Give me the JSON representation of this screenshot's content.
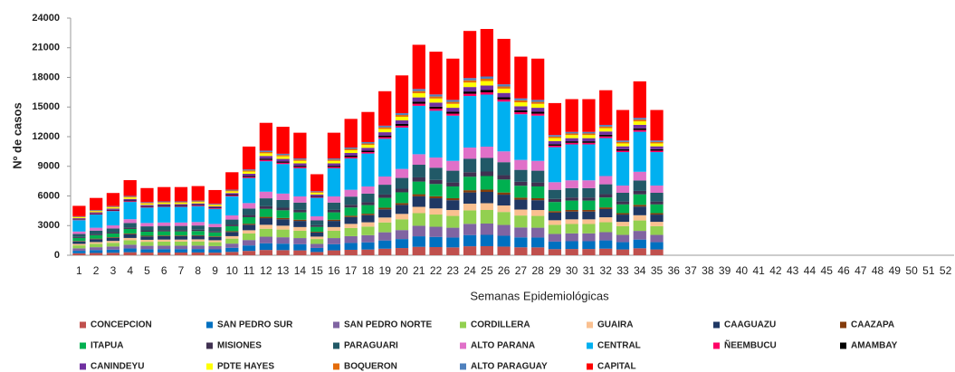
{
  "chart_data": {
    "type": "stacked_bar",
    "y_label": "Nº de casos",
    "x_label": "Semanas Epidemiológicas",
    "categories": [
      "1",
      "2",
      "3",
      "4",
      "5",
      "6",
      "7",
      "8",
      "9",
      "10",
      "11",
      "12",
      "13",
      "14",
      "15",
      "16",
      "17",
      "18",
      "19",
      "20",
      "21",
      "22",
      "23",
      "24",
      "25",
      "26",
      "27",
      "28",
      "29",
      "30",
      "31",
      "32",
      "33",
      "34",
      "35",
      "36",
      "37",
      "38",
      "39",
      "40",
      "41",
      "42",
      "43",
      "44",
      "45",
      "46",
      "47",
      "48",
      "49",
      "50",
      "51",
      "52"
    ],
    "ylim": [
      0,
      24000
    ],
    "yticks": [
      0,
      3000,
      6000,
      9000,
      12000,
      15000,
      18000,
      21000,
      24000
    ],
    "series": [
      {
        "name": "CONCEPCION",
        "color": "#c0504d",
        "values": [
          200,
          232,
          252,
          304,
          272,
          276,
          276,
          280,
          264,
          336,
          440,
          536,
          520,
          496,
          328,
          496,
          552,
          580,
          664,
          728,
          852,
          824,
          796,
          908,
          916,
          876,
          804,
          796,
          616,
          632,
          632,
          668,
          588,
          704,
          588,
          null,
          null,
          null,
          null,
          null,
          null,
          null,
          null,
          null,
          null,
          null,
          null,
          null,
          null,
          null,
          null,
          null
        ]
      },
      {
        "name": "SAN PEDRO SUR",
        "color": "#0070c0",
        "values": [
          250,
          290,
          315,
          380,
          340,
          345,
          345,
          350,
          330,
          420,
          550,
          670,
          650,
          620,
          410,
          620,
          690,
          725,
          830,
          910,
          1065,
          1030,
          995,
          1135,
          1145,
          1095,
          1005,
          995,
          770,
          790,
          790,
          835,
          735,
          880,
          735,
          null,
          null,
          null,
          null,
          null,
          null,
          null,
          null,
          null,
          null,
          null,
          null,
          null,
          null,
          null,
          null,
          null
        ]
      },
      {
        "name": "SAN PEDRO NORTE",
        "color": "#8064a2",
        "values": [
          250,
          290,
          315,
          380,
          340,
          345,
          345,
          350,
          330,
          420,
          550,
          670,
          650,
          620,
          410,
          620,
          690,
          725,
          830,
          910,
          1065,
          1030,
          995,
          1135,
          1145,
          1095,
          1005,
          995,
          770,
          790,
          790,
          835,
          735,
          880,
          735,
          null,
          null,
          null,
          null,
          null,
          null,
          null,
          null,
          null,
          null,
          null,
          null,
          null,
          null,
          null,
          null,
          null
        ]
      },
      {
        "name": "CORDILLERA",
        "color": "#92d050",
        "values": [
          300,
          348,
          378,
          456,
          408,
          414,
          414,
          420,
          396,
          504,
          660,
          804,
          780,
          744,
          492,
          744,
          828,
          870,
          996,
          1092,
          1278,
          1236,
          1194,
          1362,
          1374,
          1314,
          1206,
          1194,
          924,
          948,
          948,
          1002,
          882,
          1056,
          882,
          null,
          null,
          null,
          null,
          null,
          null,
          null,
          null,
          null,
          null,
          null,
          null,
          null,
          null,
          null,
          null,
          null
        ]
      },
      {
        "name": "GUAIRA",
        "color": "#fac090",
        "values": [
          150,
          174,
          189,
          228,
          204,
          207,
          207,
          210,
          198,
          252,
          330,
          402,
          390,
          372,
          246,
          372,
          414,
          435,
          498,
          546,
          639,
          618,
          597,
          681,
          687,
          657,
          603,
          597,
          462,
          474,
          474,
          501,
          441,
          528,
          441,
          null,
          null,
          null,
          null,
          null,
          null,
          null,
          null,
          null,
          null,
          null,
          null,
          null,
          null,
          null,
          null,
          null
        ]
      },
      {
        "name": "CAAGUAZU",
        "color": "#1f3864",
        "values": [
          250,
          290,
          315,
          380,
          340,
          345,
          345,
          350,
          330,
          420,
          550,
          670,
          650,
          620,
          410,
          620,
          690,
          725,
          830,
          910,
          1065,
          1030,
          995,
          1135,
          1145,
          1095,
          1005,
          995,
          770,
          790,
          790,
          835,
          735,
          880,
          735,
          null,
          null,
          null,
          null,
          null,
          null,
          null,
          null,
          null,
          null,
          null,
          null,
          null,
          null,
          null,
          null,
          null
        ]
      },
      {
        "name": "CAAZAPA",
        "color": "#843c0c",
        "values": [
          50,
          58,
          63,
          76,
          68,
          69,
          69,
          70,
          66,
          84,
          110,
          134,
          130,
          124,
          82,
          124,
          138,
          145,
          166,
          182,
          213,
          206,
          199,
          227,
          229,
          219,
          201,
          199,
          154,
          158,
          158,
          167,
          147,
          176,
          147,
          null,
          null,
          null,
          null,
          null,
          null,
          null,
          null,
          null,
          null,
          null,
          null,
          null,
          null,
          null,
          null,
          null
        ]
      },
      {
        "name": "ITAPUA",
        "color": "#00b050",
        "values": [
          300,
          348,
          378,
          456,
          408,
          414,
          414,
          420,
          396,
          504,
          660,
          804,
          780,
          744,
          492,
          744,
          828,
          870,
          996,
          1092,
          1278,
          1236,
          1194,
          1362,
          1374,
          1314,
          1206,
          1194,
          924,
          948,
          948,
          1002,
          882,
          1056,
          882,
          null,
          null,
          null,
          null,
          null,
          null,
          null,
          null,
          null,
          null,
          null,
          null,
          null,
          null,
          null,
          null,
          null
        ]
      },
      {
        "name": "MISIONES",
        "color": "#403151",
        "values": [
          100,
          116,
          126,
          152,
          136,
          138,
          138,
          140,
          132,
          168,
          220,
          268,
          260,
          248,
          164,
          248,
          276,
          290,
          332,
          364,
          426,
          412,
          398,
          454,
          458,
          438,
          402,
          398,
          308,
          316,
          316,
          334,
          294,
          352,
          294,
          null,
          null,
          null,
          null,
          null,
          null,
          null,
          null,
          null,
          null,
          null,
          null,
          null,
          null,
          null,
          null,
          null
        ]
      },
      {
        "name": "PARAGUARI",
        "color": "#215967",
        "values": [
          300,
          348,
          378,
          456,
          408,
          414,
          414,
          420,
          396,
          504,
          660,
          804,
          780,
          744,
          492,
          744,
          828,
          870,
          996,
          1092,
          1278,
          1236,
          1194,
          1362,
          1374,
          1314,
          1206,
          1194,
          924,
          948,
          948,
          1002,
          882,
          1056,
          882,
          null,
          null,
          null,
          null,
          null,
          null,
          null,
          null,
          null,
          null,
          null,
          null,
          null,
          null,
          null,
          null,
          null
        ]
      },
      {
        "name": "ALTO PARANA",
        "color": "#e070c8",
        "values": [
          250,
          290,
          315,
          380,
          340,
          345,
          345,
          350,
          330,
          420,
          550,
          670,
          650,
          620,
          410,
          620,
          690,
          725,
          830,
          910,
          1065,
          1030,
          995,
          1135,
          1145,
          1095,
          1005,
          995,
          770,
          790,
          790,
          835,
          735,
          880,
          735,
          null,
          null,
          null,
          null,
          null,
          null,
          null,
          null,
          null,
          null,
          null,
          null,
          null,
          null,
          null,
          null,
          null
        ]
      },
      {
        "name": "CENTRAL",
        "color": "#00b0f0",
        "values": [
          1150,
          1334,
          1449,
          1748,
          1564,
          1587,
          1587,
          1610,
          1518,
          1932,
          2530,
          3082,
          2990,
          2852,
          1886,
          2852,
          3174,
          3335,
          3818,
          4186,
          4899,
          4738,
          4577,
          5221,
          5267,
          5037,
          4623,
          4577,
          3542,
          3634,
          3634,
          3841,
          3381,
          4048,
          3381,
          null,
          null,
          null,
          null,
          null,
          null,
          null,
          null,
          null,
          null,
          null,
          null,
          null,
          null,
          null,
          null,
          null
        ]
      },
      {
        "name": "ÑEEMBUCU",
        "color": "#ff0066",
        "values": [
          50,
          58,
          63,
          76,
          68,
          69,
          69,
          70,
          66,
          84,
          110,
          134,
          130,
          124,
          82,
          124,
          138,
          145,
          166,
          182,
          213,
          206,
          199,
          227,
          229,
          219,
          201,
          199,
          154,
          158,
          158,
          167,
          147,
          176,
          147,
          null,
          null,
          null,
          null,
          null,
          null,
          null,
          null,
          null,
          null,
          null,
          null,
          null,
          null,
          null,
          null,
          null
        ]
      },
      {
        "name": "AMAMBAY",
        "color": "#000000",
        "values": [
          50,
          58,
          63,
          76,
          68,
          69,
          69,
          70,
          66,
          84,
          110,
          134,
          130,
          124,
          82,
          124,
          138,
          145,
          166,
          182,
          213,
          206,
          199,
          227,
          229,
          219,
          201,
          199,
          154,
          158,
          158,
          167,
          147,
          176,
          147,
          null,
          null,
          null,
          null,
          null,
          null,
          null,
          null,
          null,
          null,
          null,
          null,
          null,
          null,
          null,
          null,
          null
        ]
      },
      {
        "name": "CANINDEYU",
        "color": "#7030a0",
        "values": [
          100,
          116,
          126,
          152,
          136,
          138,
          138,
          140,
          132,
          168,
          220,
          268,
          260,
          248,
          164,
          248,
          276,
          290,
          332,
          364,
          426,
          412,
          398,
          454,
          458,
          438,
          402,
          398,
          308,
          316,
          316,
          334,
          294,
          352,
          294,
          null,
          null,
          null,
          null,
          null,
          null,
          null,
          null,
          null,
          null,
          null,
          null,
          null,
          null,
          null,
          null,
          null
        ]
      },
      {
        "name": "PDTE HAYES",
        "color": "#ffff00",
        "values": [
          100,
          116,
          126,
          152,
          136,
          138,
          138,
          140,
          132,
          168,
          220,
          268,
          260,
          248,
          164,
          248,
          276,
          290,
          332,
          364,
          426,
          412,
          398,
          454,
          458,
          438,
          402,
          398,
          308,
          316,
          316,
          334,
          294,
          352,
          294,
          null,
          null,
          null,
          null,
          null,
          null,
          null,
          null,
          null,
          null,
          null,
          null,
          null,
          null,
          null,
          null,
          null
        ]
      },
      {
        "name": "BOQUERON",
        "color": "#e46c0a",
        "values": [
          50,
          58,
          63,
          76,
          68,
          69,
          69,
          70,
          66,
          84,
          110,
          134,
          130,
          124,
          82,
          124,
          138,
          145,
          166,
          182,
          213,
          206,
          199,
          227,
          229,
          219,
          201,
          199,
          154,
          158,
          158,
          167,
          147,
          176,
          147,
          null,
          null,
          null,
          null,
          null,
          null,
          null,
          null,
          null,
          null,
          null,
          null,
          null,
          null,
          null,
          null,
          null
        ]
      },
      {
        "name": "ALTO PARAGUAY",
        "color": "#4f81bd",
        "values": [
          50,
          58,
          63,
          76,
          68,
          69,
          69,
          70,
          66,
          84,
          110,
          134,
          130,
          124,
          82,
          124,
          138,
          145,
          166,
          182,
          213,
          206,
          199,
          227,
          229,
          219,
          201,
          199,
          154,
          158,
          158,
          167,
          147,
          176,
          147,
          null,
          null,
          null,
          null,
          null,
          null,
          null,
          null,
          null,
          null,
          null,
          null,
          null,
          null,
          null,
          null,
          null
        ]
      },
      {
        "name": "CAPITAL",
        "color": "#ff0000",
        "values": [
          1050,
          1218,
          1323,
          1596,
          1428,
          1449,
          1449,
          1470,
          1386,
          1764,
          2310,
          2814,
          2730,
          2604,
          1722,
          2604,
          2898,
          3045,
          3486,
          3822,
          4473,
          4326,
          4179,
          4767,
          4809,
          4599,
          4221,
          4179,
          3234,
          3318,
          3318,
          3507,
          3087,
          3696,
          3087,
          null,
          null,
          null,
          null,
          null,
          null,
          null,
          null,
          null,
          null,
          null,
          null,
          null,
          null,
          null,
          null,
          null
        ]
      }
    ]
  }
}
